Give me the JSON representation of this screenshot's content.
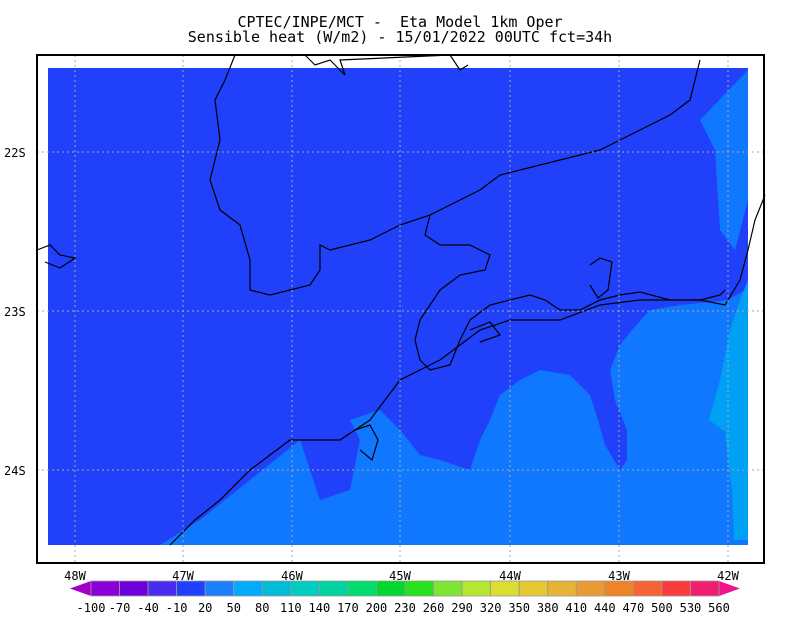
{
  "header": {
    "line1": "CPTEC/INPE/MCT -  Eta Model 1km Oper",
    "line2": "Sensible heat (W/m2) - 15/01/2022 00UTC fct=34h"
  },
  "map": {
    "lat_labels": [
      "22S",
      "23S",
      "24S"
    ],
    "lon_labels": [
      "48W",
      "47W",
      "46W",
      "45W",
      "44W",
      "43W",
      "42W"
    ],
    "gridlines": true,
    "field_colors": {
      "dominant": "#2040fa",
      "coastal": "#0f78ff",
      "offshore": "#00a0f5"
    }
  },
  "colorbar": {
    "labels": [
      "-100",
      "-70",
      "-40",
      "-10",
      "20",
      "50",
      "80",
      "110",
      "140",
      "170",
      "200",
      "230",
      "260",
      "290",
      "320",
      "350",
      "380",
      "410",
      "440",
      "470",
      "500",
      "530",
      "560"
    ],
    "colors": [
      "#8c00d8",
      "#6e00dc",
      "#4a2cf0",
      "#2040ff",
      "#1a80ff",
      "#00aaff",
      "#00bcd8",
      "#00ccc0",
      "#00d2a0",
      "#00dc6e",
      "#00d830",
      "#28e01e",
      "#7ee632",
      "#b4e632",
      "#dcdc32",
      "#e6c832",
      "#e6b432",
      "#ea9a32",
      "#f08228",
      "#f56432",
      "#fa3c3c",
      "#f01e6e"
    ],
    "under_color": "#a000c8",
    "over_color": "#f0148c"
  }
}
